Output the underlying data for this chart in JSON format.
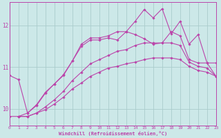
{
  "xlabel": "Windchill (Refroidissement éolien,°C)",
  "xlim": [
    0,
    23
  ],
  "ylim": [
    9.6,
    12.55
  ],
  "yticks": [
    10,
    11,
    12
  ],
  "xticks": [
    0,
    1,
    2,
    3,
    4,
    5,
    6,
    7,
    8,
    9,
    10,
    11,
    12,
    13,
    14,
    15,
    16,
    17,
    18,
    19,
    20,
    21,
    22,
    23
  ],
  "background_color": "#cce8e8",
  "grid_color": "#aacccc",
  "line_color": "#bb44aa",
  "figsize": [
    3.2,
    2.0
  ],
  "dpi": 100,
  "line1_x": [
    0,
    1,
    2,
    3,
    4,
    5,
    6,
    7,
    8,
    9,
    10,
    11,
    12,
    13,
    14,
    15,
    16,
    17,
    18,
    19,
    20,
    21,
    22,
    23
  ],
  "line1_y": [
    10.8,
    10.7,
    9.9,
    10.1,
    10.4,
    10.6,
    10.8,
    11.15,
    11.55,
    11.7,
    11.7,
    11.75,
    11.85,
    11.85,
    12.1,
    12.38,
    12.18,
    12.4,
    11.8,
    12.1,
    11.55,
    11.78,
    11.1,
    11.1
  ],
  "line2_x": [
    0,
    1,
    2,
    3,
    4,
    5,
    6,
    7,
    8,
    9,
    10,
    11,
    12,
    13,
    14,
    15,
    16,
    17,
    18,
    19,
    20,
    21,
    22,
    23
  ],
  "line2_y": [
    9.82,
    9.82,
    9.9,
    10.08,
    10.38,
    10.6,
    10.82,
    11.15,
    11.5,
    11.65,
    11.65,
    11.7,
    11.65,
    11.85,
    11.78,
    11.68,
    11.55,
    11.58,
    11.85,
    11.75,
    11.18,
    11.1,
    11.1,
    10.78
  ],
  "line3_x": [
    1,
    2,
    3,
    4,
    5,
    6,
    7,
    8,
    9,
    10,
    11,
    12,
    13,
    14,
    15,
    16,
    17,
    18,
    19,
    20,
    21,
    22,
    23
  ],
  "line3_y": [
    9.82,
    9.82,
    9.9,
    10.05,
    10.22,
    10.42,
    10.68,
    10.88,
    11.08,
    11.18,
    11.28,
    11.38,
    11.42,
    11.52,
    11.58,
    11.58,
    11.58,
    11.58,
    11.52,
    11.12,
    11.02,
    10.98,
    10.78
  ],
  "line4_x": [
    1,
    2,
    3,
    4,
    5,
    6,
    7,
    8,
    9,
    10,
    11,
    12,
    13,
    14,
    15,
    16,
    17,
    18,
    19,
    20,
    21,
    22,
    23
  ],
  "line4_y": [
    9.82,
    9.82,
    9.9,
    9.98,
    10.12,
    10.28,
    10.48,
    10.62,
    10.78,
    10.88,
    10.98,
    11.02,
    11.08,
    11.12,
    11.18,
    11.22,
    11.22,
    11.22,
    11.18,
    11.02,
    10.92,
    10.88,
    10.78
  ]
}
